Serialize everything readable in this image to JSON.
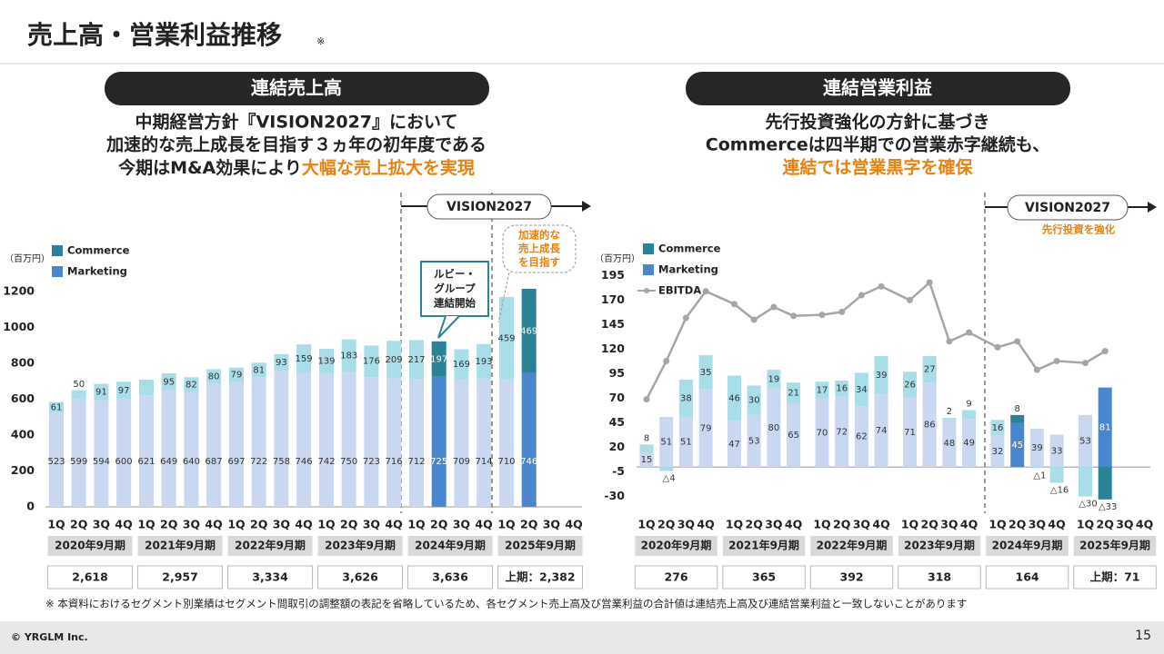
{
  "title": "売上高・営業利益推移",
  "title_note": "※",
  "chart_data": [
    {
      "type": "bar",
      "stacked": true,
      "heading": "連結売上高",
      "subtitle": [
        "中期経営方針『VISION2027』において",
        "加速的な売上成長を目指す３ヵ年の初年度である",
        "今期はM&A効果により"
      ],
      "subtitle_highlight": "大幅な売上拡大を実現",
      "y_label": "（百万円）",
      "categories": [
        "1Q",
        "2Q",
        "3Q",
        "4Q",
        "1Q",
        "2Q",
        "3Q",
        "4Q",
        "1Q",
        "2Q",
        "3Q",
        "4Q",
        "1Q",
        "2Q",
        "3Q",
        "4Q",
        "1Q",
        "2Q",
        "3Q",
        "4Q",
        "1Q",
        "2Q",
        "3Q",
        "4Q"
      ],
      "periods": [
        "2020年9月期",
        "2021年9月期",
        "2022年9月期",
        "2023年9月期",
        "2024年9月期",
        "2025年9月期"
      ],
      "totals": [
        "2,618",
        "2,957",
        "3,334",
        "3,626",
        "3,636",
        "上期：2,382"
      ],
      "ylim": [
        0,
        1250
      ],
      "yticks": [
        0,
        200,
        400,
        600,
        800,
        1000,
        1200
      ],
      "series": [
        {
          "name": "Marketing",
          "color": "#4a86d0",
          "values": [
            523,
            599,
            594,
            600,
            621,
            649,
            640,
            687,
            697,
            722,
            758,
            746,
            742,
            750,
            723,
            716,
            712,
            725,
            709,
            714,
            710,
            746,
            null,
            null
          ],
          "colors": [
            "#c9d8f0",
            "#c9d8f0",
            "#c9d8f0",
            "#c9d8f0",
            "#c9d8f0",
            "#c9d8f0",
            "#c9d8f0",
            "#c9d8f0",
            "#c9d8f0",
            "#c9d8f0",
            "#c9d8f0",
            "#c9d8f0",
            "#c9d8f0",
            "#c9d8f0",
            "#c9d8f0",
            "#c9d8f0",
            "#c9d8f0",
            "#4a86d0",
            "#c9d8f0",
            "#c9d8f0",
            "#c9d8f0",
            "#4a86d0",
            "#c9d8f0",
            "#c9d8f0"
          ]
        },
        {
          "name": "Commerce",
          "color": "#2a8296",
          "values": [
            61,
            50,
            91,
            97,
            88,
            95,
            82,
            80,
            79,
            81,
            93,
            159,
            139,
            183,
            176,
            209,
            217,
            197,
            169,
            193,
            459,
            469,
            null,
            null
          ],
          "value_labels": [
            "61",
            "50",
            "91",
            "97",
            null,
            "95",
            "82",
            "80",
            "79",
            "81",
            "93",
            "159",
            "139",
            "183",
            "176",
            "209",
            "217",
            "197",
            "169",
            "193",
            "459",
            "469",
            null,
            null
          ],
          "colors": [
            "#a9dde8",
            "#a9dde8",
            "#a9dde8",
            "#a9dde8",
            "#a9dde8",
            "#a9dde8",
            "#a9dde8",
            "#a9dde8",
            "#a9dde8",
            "#a9dde8",
            "#a9dde8",
            "#a9dde8",
            "#a9dde8",
            "#a9dde8",
            "#a9dde8",
            "#a9dde8",
            "#a9dde8",
            "#2a8296",
            "#a9dde8",
            "#a9dde8",
            "#a9dde8",
            "#2a8296",
            "#a9dde8",
            "#a9dde8"
          ]
        }
      ],
      "annotations": {
        "vision": "VISION2027",
        "growth": [
          "加速的な",
          "売上成長",
          "を目指す"
        ],
        "ruby": [
          "ルビー・",
          "グループ",
          "連結開始"
        ]
      }
    },
    {
      "type": "bar",
      "stacked": true,
      "heading": "連結営業利益",
      "subtitle": [
        "先行投資強化の方針に基づき",
        "Commerceは四半期での営業赤字継続も、"
      ],
      "subtitle_highlight": "連結では営業黒字を確保",
      "y_label": "（百万円）",
      "categories": [
        "1Q",
        "2Q",
        "3Q",
        "4Q",
        "1Q",
        "2Q",
        "3Q",
        "4Q",
        "1Q",
        "2Q",
        "3Q",
        "4Q",
        "1Q",
        "2Q",
        "3Q",
        "4Q",
        "1Q",
        "2Q",
        "3Q",
        "4Q",
        "1Q",
        "2Q",
        "3Q",
        "4Q"
      ],
      "periods": [
        "2020年9月期",
        "2021年9月期",
        "2022年9月期",
        "2023年9月期",
        "2024年9月期",
        "2025年9月期"
      ],
      "totals": [
        "276",
        "365",
        "392",
        "318",
        "164",
        "上期：71"
      ],
      "ylim": [
        -35,
        200
      ],
      "yticks": [
        -30,
        -5,
        20,
        45,
        70,
        95,
        120,
        145,
        170,
        195
      ],
      "series": [
        {
          "name": "Marketing",
          "color": "#4a86d0",
          "values": [
            15,
            51,
            51,
            79,
            47,
            53,
            80,
            65,
            70,
            72,
            62,
            74,
            71,
            86,
            48,
            49,
            32,
            45,
            39,
            33,
            53,
            81,
            null,
            null
          ],
          "colors": [
            "#c9d8f0",
            "#c9d8f0",
            "#c9d8f0",
            "#c9d8f0",
            "#c9d8f0",
            "#c9d8f0",
            "#c9d8f0",
            "#c9d8f0",
            "#c9d8f0",
            "#c9d8f0",
            "#c9d8f0",
            "#c9d8f0",
            "#c9d8f0",
            "#c9d8f0",
            "#c9d8f0",
            "#c9d8f0",
            "#c9d8f0",
            "#4a86d0",
            "#c9d8f0",
            "#c9d8f0",
            "#c9d8f0",
            "#4a86d0",
            "#c9d8f0",
            "#c9d8f0"
          ]
        },
        {
          "name": "Commerce",
          "color": "#2a8296",
          "values": [
            8,
            -4,
            38,
            35,
            46,
            30,
            19,
            21,
            17,
            16,
            34,
            39,
            26,
            27,
            2,
            9,
            16,
            8,
            -1,
            -16,
            -30,
            -33,
            null,
            null
          ],
          "value_labels": [
            "8",
            "△4",
            "38",
            "35",
            "46",
            "30",
            "19",
            "21",
            "17",
            "16",
            "34",
            "39",
            "26",
            "27",
            "2",
            "9",
            "16",
            "8",
            "△1",
            "△16",
            "△30",
            "△33",
            null,
            null
          ],
          "colors": [
            "#a9dde8",
            "#a9dde8",
            "#a9dde8",
            "#a9dde8",
            "#a9dde8",
            "#a9dde8",
            "#a9dde8",
            "#a9dde8",
            "#a9dde8",
            "#a9dde8",
            "#a9dde8",
            "#a9dde8",
            "#a9dde8",
            "#a9dde8",
            "#a9dde8",
            "#a9dde8",
            "#a9dde8",
            "#2a8296",
            "#a9dde8",
            "#a9dde8",
            "#a9dde8",
            "#2a8296",
            "#a9dde8",
            "#a9dde8"
          ]
        },
        {
          "name": "EBITDA",
          "type": "line",
          "color": "#a6a6a6",
          "values": [
            69,
            108,
            152,
            179,
            166,
            150,
            163,
            154,
            155,
            158,
            175,
            184,
            170,
            188,
            128,
            137,
            122,
            128,
            99,
            108,
            106,
            118,
            null,
            null
          ]
        }
      ],
      "annotations": {
        "vision": "VISION2027",
        "invest": "先行投資を強化"
      }
    }
  ],
  "footnote": "※ 本資料におけるセグメント別業績はセグメント間取引の調整額の表記を省略しているため、各セグメント売上高及び営業利益の合計値は連結売上高及び連結営業利益と一致しないことがあります",
  "footer": {
    "copyright": "© YRGLM Inc.",
    "page": "15"
  }
}
